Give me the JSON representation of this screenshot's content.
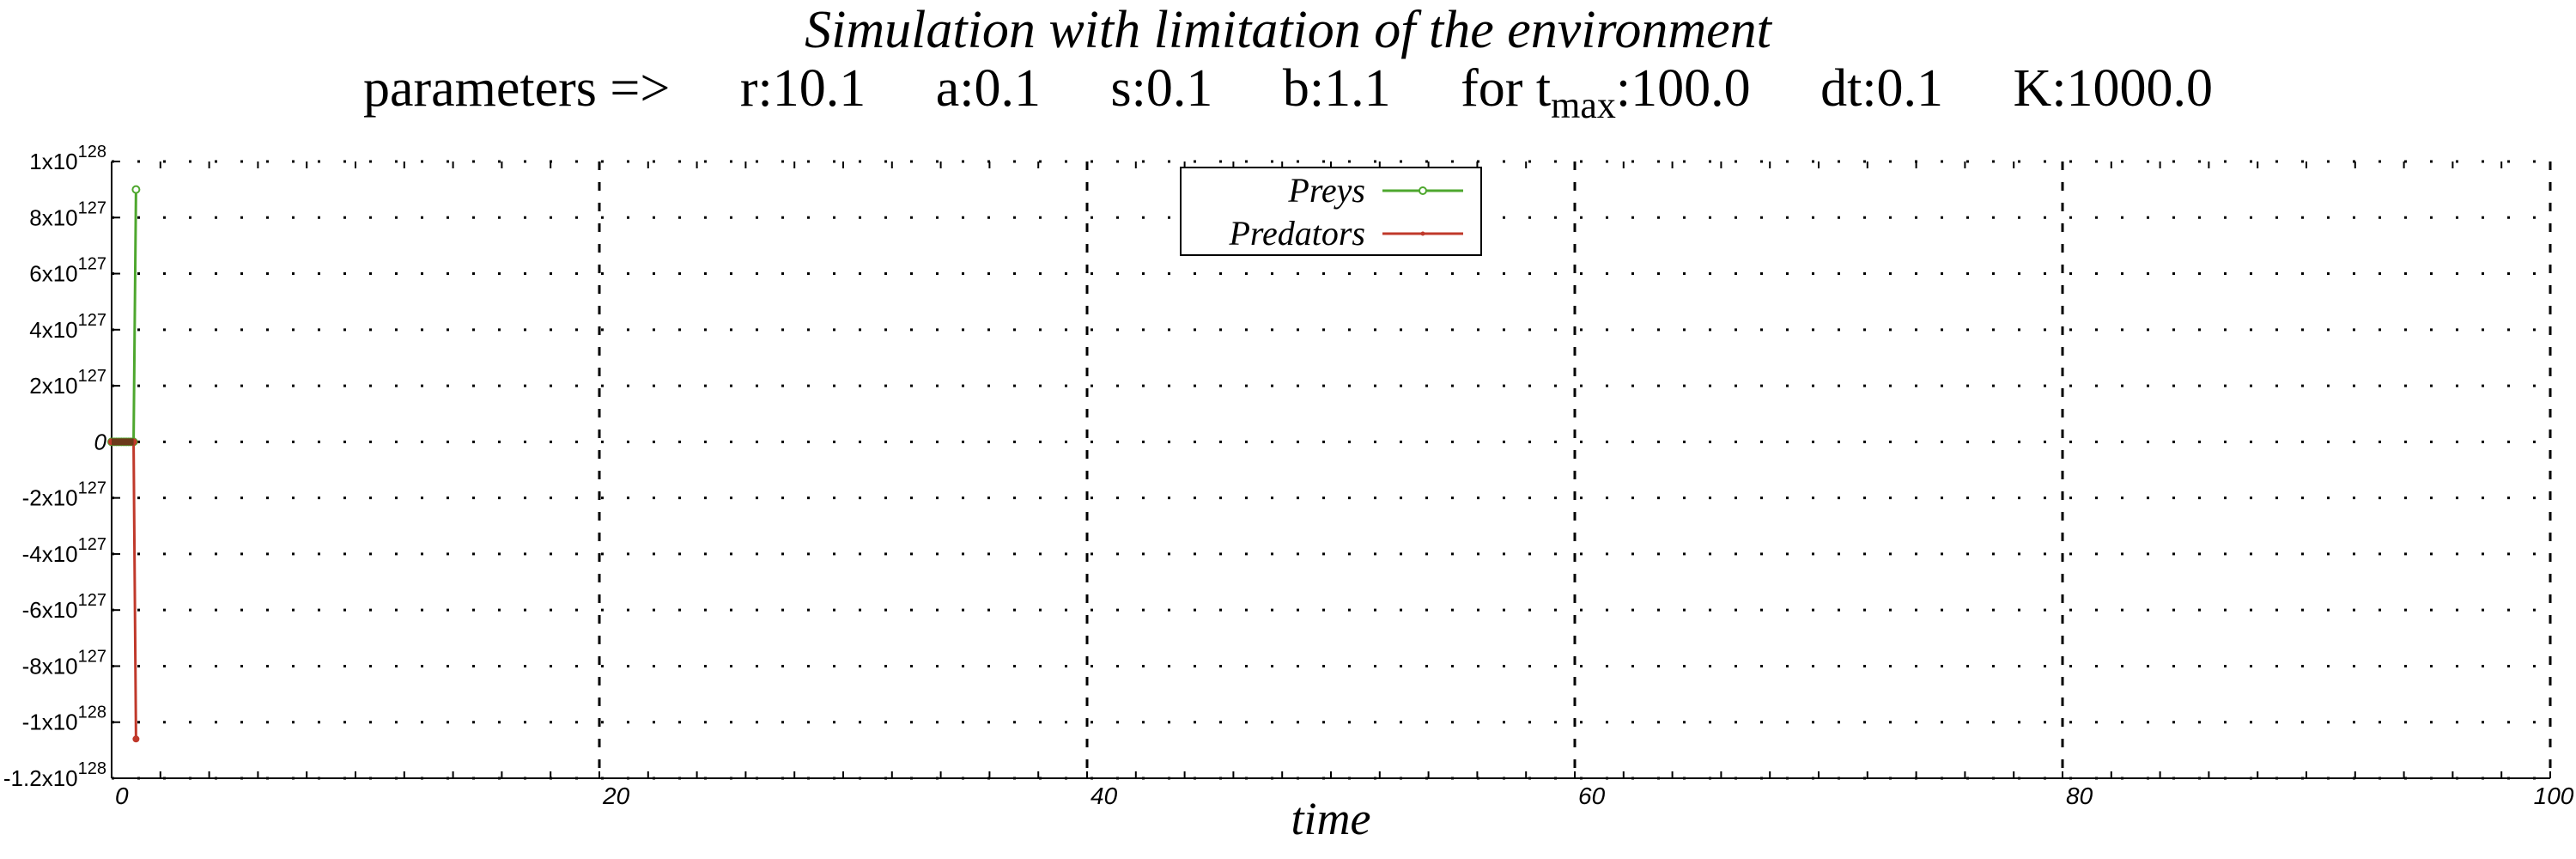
{
  "chart_data": {
    "type": "line",
    "title": "Simulation with limitation of the environment",
    "subtitle": {
      "prefix": "parameters =>",
      "params": [
        {
          "label": "r:",
          "value": "10.1"
        },
        {
          "label": "a:",
          "value": "0.1"
        },
        {
          "label": "s:",
          "value": "0.1"
        },
        {
          "label": "b:",
          "value": "1.1"
        }
      ],
      "tmax": {
        "label_before": "for t",
        "sub": "max",
        "value": ":100.0"
      },
      "dt": "dt:0.1",
      "K": "K:1000.0"
    },
    "xlabel": "time",
    "xlim": [
      0,
      100
    ],
    "ylim": [
      -1.2e+128,
      1e+128
    ],
    "x_ticks": [
      {
        "value": 0,
        "label": "0"
      },
      {
        "value": 20,
        "label": "20"
      },
      {
        "value": 40,
        "label": "40"
      },
      {
        "value": 60,
        "label": "60"
      },
      {
        "value": 80,
        "label": "80"
      },
      {
        "value": 100,
        "label": "100"
      }
    ],
    "y_ticks": [
      {
        "value": 1e+128,
        "mant": "1x10",
        "exp": "128"
      },
      {
        "value": 8e+127,
        "mant": "8x10",
        "exp": "127"
      },
      {
        "value": 6e+127,
        "mant": "6x10",
        "exp": "127"
      },
      {
        "value": 4e+127,
        "mant": "4x10",
        "exp": "127"
      },
      {
        "value": 2e+127,
        "mant": "2x10",
        "exp": "127"
      },
      {
        "value": 0,
        "mant": "0",
        "exp": ""
      },
      {
        "value": -2e+127,
        "mant": "-2x10",
        "exp": "127"
      },
      {
        "value": -4e+127,
        "mant": "-4x10",
        "exp": "127"
      },
      {
        "value": -6e+127,
        "mant": "-6x10",
        "exp": "127"
      },
      {
        "value": -8e+127,
        "mant": "-8x10",
        "exp": "127"
      },
      {
        "value": -1e+128,
        "mant": "-1x10",
        "exp": "128"
      },
      {
        "value": -1.2e+128,
        "mant": "-1.2x10",
        "exp": "128"
      }
    ],
    "grid": true,
    "legend_position": "top-center",
    "series": [
      {
        "name": "Preys",
        "color": "#4ea72e",
        "x": [
          0,
          0.1,
          0.2,
          0.3,
          0.4,
          0.5,
          0.6,
          0.7,
          0.8,
          0.9,
          1.0
        ],
        "y": [
          0,
          0,
          0,
          0,
          0,
          0,
          0,
          0,
          0,
          0,
          9e+127
        ]
      },
      {
        "name": "Predators",
        "color": "#c0392b",
        "x": [
          0,
          0.1,
          0.2,
          0.3,
          0.4,
          0.5,
          0.6,
          0.7,
          0.8,
          0.9,
          1.0
        ],
        "y": [
          0,
          0,
          0,
          0,
          0,
          0,
          0,
          0,
          0,
          0,
          -1.06e+128
        ]
      }
    ]
  }
}
